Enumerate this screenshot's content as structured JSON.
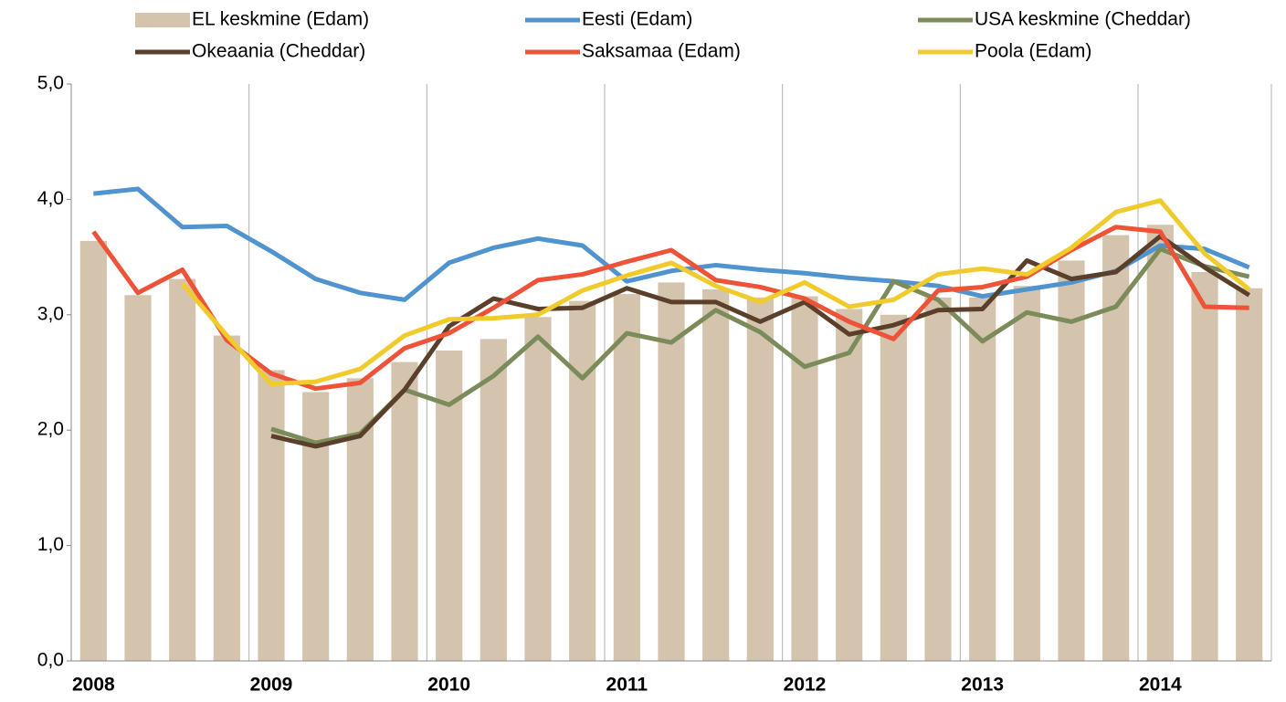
{
  "chart_data": {
    "type": "combo",
    "categories": [
      "2008",
      null,
      null,
      null,
      "2009",
      null,
      null,
      null,
      "2010",
      null,
      null,
      null,
      "2011",
      null,
      null,
      null,
      "2012",
      null,
      null,
      null,
      "2013",
      null,
      null,
      null,
      "2014",
      null,
      null
    ],
    "series": [
      {
        "name": "EL keskmine (Edam)",
        "type": "bar",
        "color": "#d4c4ae",
        "values": [
          3.64,
          3.17,
          3.31,
          2.82,
          2.52,
          2.33,
          2.45,
          2.59,
          2.69,
          2.79,
          2.98,
          3.12,
          3.18,
          3.28,
          3.22,
          3.15,
          3.16,
          3.05,
          3.0,
          3.15,
          3.15,
          3.25,
          3.47,
          3.69,
          3.78,
          3.37,
          3.23
        ]
      },
      {
        "name": "Eesti (Edam)",
        "type": "line",
        "color": "#4f93cf",
        "values": [
          4.05,
          4.09,
          3.76,
          3.77,
          3.55,
          3.31,
          3.19,
          3.13,
          3.45,
          3.58,
          3.66,
          3.6,
          3.29,
          3.38,
          3.43,
          3.39,
          3.36,
          3.32,
          3.29,
          3.25,
          3.16,
          3.22,
          3.28,
          3.38,
          3.6,
          3.57,
          3.41
        ]
      },
      {
        "name": "USA keskmine (Cheddar)",
        "type": "line",
        "color": "#7b8b5a",
        "values": [
          null,
          null,
          null,
          null,
          2.01,
          1.89,
          1.97,
          2.35,
          2.22,
          2.47,
          2.81,
          2.45,
          2.84,
          2.76,
          3.04,
          2.85,
          2.55,
          2.67,
          3.29,
          3.13,
          2.77,
          3.02,
          2.94,
          3.07,
          3.57,
          3.42,
          3.33
        ]
      },
      {
        "name": "Okeaania (Cheddar)",
        "type": "line",
        "color": "#5a3f2b",
        "values": [
          null,
          null,
          null,
          null,
          1.95,
          1.86,
          1.95,
          2.35,
          2.9,
          3.14,
          3.05,
          3.06,
          3.23,
          3.11,
          3.11,
          2.94,
          3.11,
          2.83,
          2.91,
          3.04,
          3.05,
          3.47,
          3.31,
          3.37,
          3.68,
          3.41,
          3.17
        ]
      },
      {
        "name": "Saksamaa (Edam)",
        "type": "line",
        "color": "#ee5338",
        "values": [
          3.72,
          3.19,
          3.39,
          2.78,
          2.49,
          2.36,
          2.41,
          2.71,
          2.84,
          3.06,
          3.3,
          3.35,
          3.46,
          3.56,
          3.3,
          3.24,
          3.14,
          2.94,
          2.79,
          3.21,
          3.24,
          3.33,
          3.56,
          3.76,
          3.72,
          3.07,
          3.06
        ]
      },
      {
        "name": "Poola (Edam)",
        "type": "line",
        "color": "#f0cb2b",
        "values": [
          null,
          null,
          3.27,
          2.82,
          2.4,
          2.42,
          2.53,
          2.82,
          2.96,
          2.97,
          3.0,
          3.21,
          3.34,
          3.45,
          3.25,
          3.11,
          3.28,
          3.07,
          3.13,
          3.35,
          3.4,
          3.35,
          3.58,
          3.89,
          3.99,
          3.53,
          3.22
        ]
      }
    ],
    "ylim": [
      0,
      5
    ],
    "yticks": [
      {
        "value": 0,
        "label": "0,0"
      },
      {
        "value": 1,
        "label": "1,0"
      },
      {
        "value": 2,
        "label": "2,0"
      },
      {
        "value": 3,
        "label": "3,0"
      },
      {
        "value": 4,
        "label": "4,0"
      },
      {
        "value": 5,
        "label": "5,0"
      }
    ],
    "legend": "top"
  }
}
